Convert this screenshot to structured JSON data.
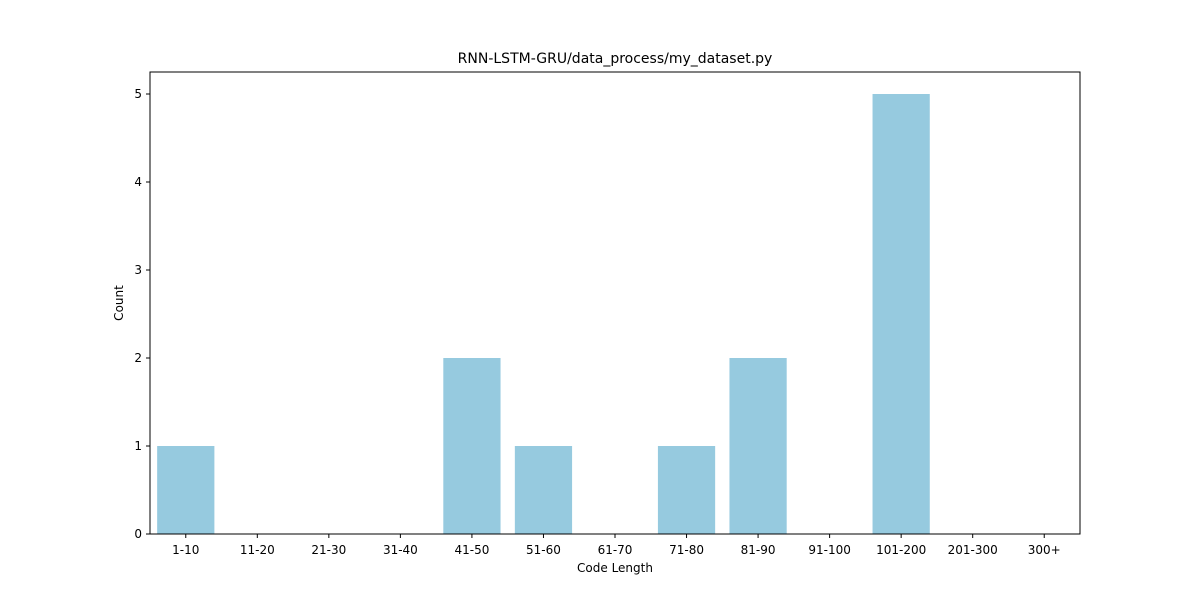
{
  "chart_data": {
    "type": "bar",
    "title": "RNN-LSTM-GRU/data_process/my_dataset.py",
    "xlabel": "Code Length",
    "ylabel": "Count",
    "categories": [
      "1-10",
      "11-20",
      "21-30",
      "31-40",
      "41-50",
      "51-60",
      "61-70",
      "71-80",
      "81-90",
      "91-100",
      "101-200",
      "201-300",
      "300+"
    ],
    "values": [
      1,
      0,
      0,
      0,
      2,
      1,
      0,
      1,
      2,
      0,
      5,
      0,
      0
    ],
    "ylim": [
      0,
      5.25
    ],
    "yticks": [
      0,
      1,
      2,
      3,
      4,
      5
    ],
    "grid": false,
    "legend": "none",
    "colors": {
      "bar": "#96cadf",
      "axis": "#000000",
      "background": "#ffffff"
    }
  }
}
